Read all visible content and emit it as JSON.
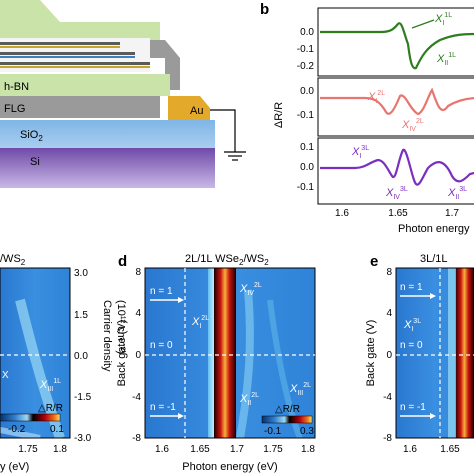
{
  "panel_b": {
    "letter": "b",
    "ylabel": "ΔR/R",
    "xlabel": "Photon energy",
    "xticks": [
      "1.6",
      "1.65",
      "1.7",
      "1.7"
    ],
    "rows": [
      {
        "color": "#2e7d1f",
        "yticks": [
          "0.0",
          "-0.1",
          "-0.2"
        ],
        "labels": [
          "X",
          "X"
        ],
        "subs": [
          "I",
          "II"
        ],
        "sups": [
          "1L",
          "1L"
        ]
      },
      {
        "color": "#e8756f",
        "yticks": [
          "0.0",
          "-0.1"
        ],
        "labels": [
          "X",
          "X"
        ],
        "subs": [
          "I",
          "IV"
        ],
        "sups": [
          "2L",
          "2L"
        ]
      },
      {
        "color": "#7b2fbf",
        "yticks": [
          "0.1",
          "0.0",
          "-0.1"
        ],
        "labels": [
          "X",
          "X",
          "X"
        ],
        "subs": [
          "I",
          "IV",
          "II"
        ],
        "sups": [
          "3L",
          "3L",
          "3L"
        ]
      }
    ]
  },
  "schematic": {
    "hbn": "h-BN",
    "flg": "FLG",
    "au": "Au",
    "sio2": "SiO",
    "sio2_sub": "2",
    "si": "Si"
  },
  "panel_left": {
    "title": "/WS",
    "title_sub": "2",
    "right_ylabel": "Carrier density",
    "right_yunit": "(10¹² cm⁻²)",
    "yticks": [
      "3.0",
      "1.5",
      "0.0",
      "-1.5",
      "-3.0"
    ],
    "xticks": [
      "1.75",
      "1.8"
    ],
    "xlabel": "y (eV)",
    "n_labels": [
      "n = -1"
    ],
    "exciton": {
      "x": "X",
      "sub": "III",
      "sup": "1L"
    },
    "exciton2": {
      "x": "X",
      "sub": "I"
    },
    "colorbar": {
      "title": "△R/R",
      "min": "-0.2",
      "max": "0.1"
    }
  },
  "panel_d": {
    "letter": "d",
    "title": "2L/1L  WSe",
    "title_sub": "2",
    "title_tail": "/WS",
    "title_sub2": "2",
    "ylabel": "Back gate (V)",
    "yticks": [
      "8",
      "4",
      "0",
      "-4",
      "-8"
    ],
    "xticks": [
      "1.6",
      "1.65",
      "1.7",
      "1.75",
      "1.8"
    ],
    "xlabel": "Photon energy (eV)",
    "n_labels": [
      "n = 1",
      "n = 0",
      "n = -1"
    ],
    "excitons": [
      {
        "x": "X",
        "sub": "IV",
        "sup": "2L"
      },
      {
        "x": "X",
        "sub": "I",
        "sup": "2L"
      },
      {
        "x": "X",
        "sub": "II",
        "sup": "2L"
      },
      {
        "x": "X",
        "sub": "III",
        "sup": "2L"
      }
    ],
    "colorbar": {
      "title": "△R/R",
      "min": "-0.1",
      "max": "0.3"
    }
  },
  "panel_e": {
    "letter": "e",
    "title": "3L/1L",
    "ylabel": "Back gate (V)",
    "yticks": [
      "8",
      "4",
      "0",
      "-4",
      "-8"
    ],
    "xticks": [
      "1.6",
      "1.65"
    ],
    "n_labels": [
      "n = 1",
      "n = 0",
      "n = -1"
    ],
    "exciton": {
      "x": "X",
      "sub": "I",
      "sup": "3L"
    }
  }
}
